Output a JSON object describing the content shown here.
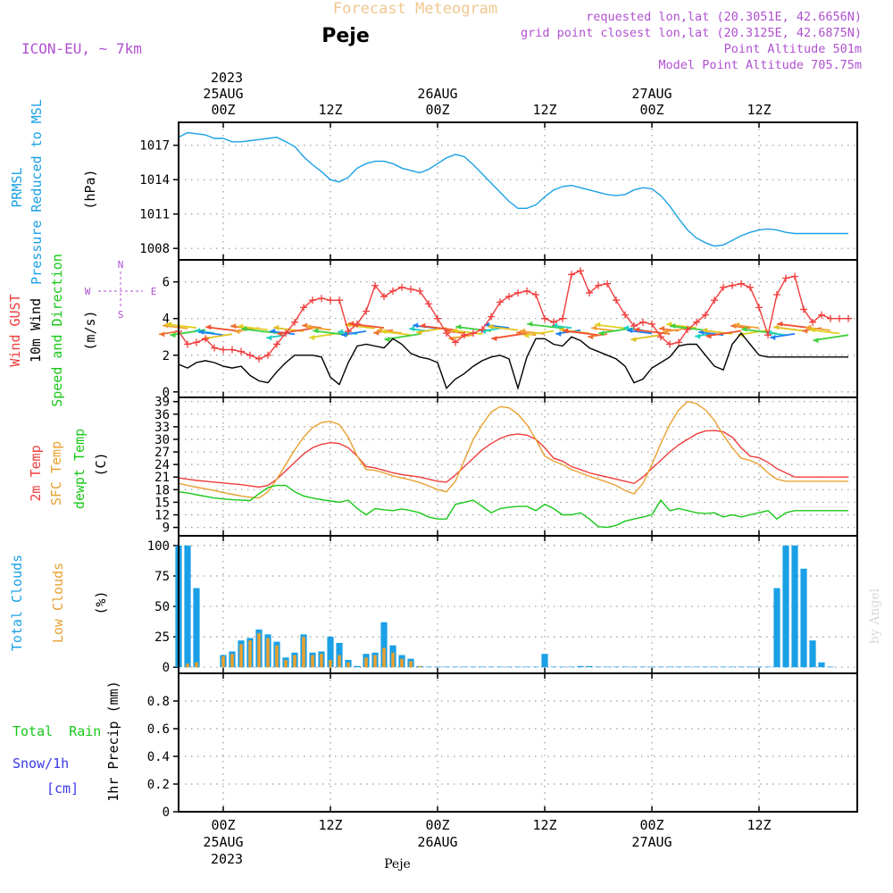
{
  "header": {
    "product": "Forecast Meteogram",
    "location": "Peje",
    "model": "ICON-EU, ~ 7km",
    "requested": "requested lon,lat (20.3051E, 42.6656N)",
    "gridpoint": "grid point closest lon,lat (20.3125E, 42.6875N)",
    "point_alt": "Point Altitude 501m",
    "model_alt": "Model Point Altitude 705.75m",
    "footer_location": "Peje",
    "credit": "by Angel"
  },
  "time_axis": {
    "top_year": "2023",
    "bottom_year": "2023",
    "ticks": [
      {
        "t": 0,
        "hour": "00Z",
        "date": "25AUG"
      },
      {
        "t": 12,
        "hour": "12Z",
        "date": ""
      },
      {
        "t": 24,
        "hour": "00Z",
        "date": "26AUG"
      },
      {
        "t": 36,
        "hour": "12Z",
        "date": ""
      },
      {
        "t": 48,
        "hour": "00Z",
        "date": "27AUG"
      },
      {
        "t": 60,
        "hour": "12Z",
        "date": ""
      }
    ],
    "range_hours": [
      -5,
      71
    ]
  },
  "colors": {
    "pressure": "#1aa0e6",
    "gust": "#f03c3c",
    "wind": "#000000",
    "temp2m": "#f03c3c",
    "sfctemp": "#e8a030",
    "dewpt": "#18c818",
    "totalclouds": "#1aa0e6",
    "lowclouds": "#e8a030",
    "rain": "#18c818",
    "snow": "#3838e8",
    "purple": "#b050d0",
    "title_orange": "#f0c890"
  },
  "panels": {
    "pressure": {
      "label1": "PRMSL",
      "label2": "Pressure Reduced to MSL",
      "units": "(hPa)"
    },
    "wind": {
      "label_gust": "Wind GUST",
      "label_wind": "10m Wind",
      "label_dir": "Speed and Direction",
      "units": "(m/s)",
      "compass_n": "N",
      "compass_s": "S",
      "compass_e": "E",
      "compass_w": "W"
    },
    "temp": {
      "label_2m": "2m Temp",
      "label_sfc": "SFC Temp",
      "label_dewpt": "dewpt Temp",
      "units": "(C)"
    },
    "clouds": {
      "label_total": "Total Clouds",
      "label_low": "Low Clouds",
      "units": "(%)"
    },
    "precip": {
      "label_rain": "Total  Rain",
      "label_snow": "Snow/1h",
      "label_cm": "[cm]",
      "units": "1hr Precip (mm)"
    }
  },
  "chart_data": [
    {
      "type": "line",
      "id": "pressure",
      "ylim": [
        1007,
        1019
      ],
      "yticks": [
        1008,
        1011,
        1014,
        1017
      ],
      "x": [
        -5,
        -4,
        -3,
        -2,
        -1,
        0,
        1,
        2,
        3,
        4,
        5,
        6,
        7,
        8,
        9,
        10,
        11,
        12,
        13,
        14,
        15,
        16,
        17,
        18,
        19,
        20,
        21,
        22,
        23,
        24,
        25,
        26,
        27,
        28,
        29,
        30,
        31,
        32,
        33,
        34,
        35,
        36,
        37,
        38,
        39,
        40,
        41,
        42,
        43,
        44,
        45,
        46,
        47,
        48,
        49,
        50,
        51,
        52,
        53,
        54,
        55,
        56,
        57,
        58,
        59,
        60,
        61,
        62,
        63,
        64,
        65,
        66,
        67,
        68,
        69,
        70
      ],
      "series": [
        {
          "name": "PRMSL",
          "values": [
            1017.7,
            1018.1,
            1018.0,
            1017.9,
            1017.6,
            1017.6,
            1017.3,
            1017.3,
            1017.4,
            1017.5,
            1017.6,
            1017.7,
            1017.3,
            1016.9,
            1016.0,
            1015.3,
            1014.7,
            1014.0,
            1013.8,
            1014.2,
            1015.0,
            1015.4,
            1015.6,
            1015.6,
            1015.4,
            1015.0,
            1014.8,
            1014.6,
            1014.9,
            1015.4,
            1015.9,
            1016.2,
            1016.0,
            1015.3,
            1014.5,
            1013.7,
            1012.9,
            1012.1,
            1011.5,
            1011.5,
            1011.8,
            1012.5,
            1013.1,
            1013.4,
            1013.5,
            1013.3,
            1013.1,
            1012.9,
            1012.7,
            1012.6,
            1012.7,
            1013.1,
            1013.3,
            1013.2,
            1012.6,
            1011.7,
            1010.6,
            1009.6,
            1008.9,
            1008.5,
            1008.2,
            1008.3,
            1008.7,
            1009.1,
            1009.4,
            1009.6,
            1009.7,
            1009.6,
            1009.4,
            1009.3,
            1009.3,
            1009.3,
            1009.3,
            1009.3,
            1009.3,
            1009.3
          ]
        }
      ]
    },
    {
      "type": "line",
      "id": "wind",
      "ylim": [
        -0.3,
        7.2
      ],
      "yticks": [
        0,
        2,
        4,
        6
      ],
      "x": [
        -5,
        -4,
        -3,
        -2,
        -1,
        0,
        1,
        2,
        3,
        4,
        5,
        6,
        7,
        8,
        9,
        10,
        11,
        12,
        13,
        14,
        15,
        16,
        17,
        18,
        19,
        20,
        21,
        22,
        23,
        24,
        25,
        26,
        27,
        28,
        29,
        30,
        31,
        32,
        33,
        34,
        35,
        36,
        37,
        38,
        39,
        40,
        41,
        42,
        43,
        44,
        45,
        46,
        47,
        48,
        49,
        50,
        51,
        52,
        53,
        54,
        55,
        56,
        57,
        58,
        59,
        60,
        61,
        62,
        63,
        64,
        65,
        66,
        67,
        68,
        69,
        70
      ],
      "series": [
        {
          "name": "Wind GUST",
          "values": [
            3.3,
            2.6,
            2.7,
            2.9,
            2.4,
            2.3,
            2.3,
            2.2,
            2.0,
            1.8,
            2.0,
            2.6,
            3.2,
            3.8,
            4.6,
            5.0,
            5.1,
            5.0,
            5.0,
            3.3,
            3.7,
            4.4,
            5.8,
            5.2,
            5.5,
            5.7,
            5.6,
            5.5,
            4.8,
            4.0,
            3.2,
            2.7,
            3.1,
            3.2,
            3.4,
            4.1,
            4.9,
            5.2,
            5.4,
            5.5,
            5.3,
            4.0,
            3.8,
            4.0,
            6.4,
            6.6,
            5.4,
            5.8,
            5.9,
            5.0,
            4.2,
            3.6,
            3.8,
            3.7,
            3.0,
            2.6,
            2.7,
            3.4,
            3.8,
            4.2,
            5.0,
            5.7,
            5.8,
            5.9,
            5.7,
            4.6,
            3.1,
            5.3,
            6.2,
            6.3,
            4.5,
            3.8,
            4.2,
            4.0,
            4.0,
            4.0
          ]
        },
        {
          "name": "10m Wind",
          "values": [
            1.5,
            1.3,
            1.6,
            1.7,
            1.6,
            1.4,
            1.3,
            1.4,
            0.9,
            0.6,
            0.5,
            1.1,
            1.6,
            2.0,
            2.0,
            2.0,
            1.9,
            0.8,
            0.4,
            1.6,
            2.5,
            2.6,
            2.5,
            2.4,
            2.9,
            2.6,
            2.1,
            1.9,
            1.8,
            1.6,
            0.2,
            0.7,
            1.0,
            1.4,
            1.7,
            1.9,
            2.0,
            1.8,
            0.2,
            1.9,
            2.9,
            2.9,
            2.6,
            2.5,
            3.0,
            2.8,
            2.4,
            2.2,
            2.0,
            1.8,
            1.4,
            0.5,
            0.7,
            1.3,
            1.6,
            1.9,
            2.5,
            2.6,
            2.6,
            2.0,
            1.4,
            1.2,
            2.6,
            3.2,
            2.6,
            2.0,
            1.9,
            1.9,
            1.9,
            1.9,
            1.9,
            1.9,
            1.9,
            1.9,
            1.9,
            1.9
          ]
        }
      ]
    },
    {
      "type": "line",
      "id": "temperature",
      "ylim": [
        7,
        40
      ],
      "yticks": [
        9,
        12,
        15,
        18,
        21,
        24,
        27,
        30,
        33,
        36,
        39
      ],
      "x": [
        -5,
        -4,
        -3,
        -2,
        -1,
        0,
        1,
        2,
        3,
        4,
        5,
        6,
        7,
        8,
        9,
        10,
        11,
        12,
        13,
        14,
        15,
        16,
        17,
        18,
        19,
        20,
        21,
        22,
        23,
        24,
        25,
        26,
        27,
        28,
        29,
        30,
        31,
        32,
        33,
        34,
        35,
        36,
        37,
        38,
        39,
        40,
        41,
        42,
        43,
        44,
        45,
        46,
        47,
        48,
        49,
        50,
        51,
        52,
        53,
        54,
        55,
        56,
        57,
        58,
        59,
        60,
        61,
        62,
        63,
        64,
        65,
        66,
        67,
        68,
        69,
        70
      ],
      "series": [
        {
          "name": "2m Temp",
          "values": [
            20.8,
            20.5,
            20.2,
            20.0,
            19.8,
            19.6,
            19.4,
            19.2,
            18.9,
            18.6,
            19.0,
            20.5,
            22.5,
            24.5,
            26.5,
            28.0,
            28.8,
            29.2,
            29.0,
            28.0,
            26.0,
            23.5,
            23.2,
            22.6,
            22.0,
            21.6,
            21.3,
            21.0,
            20.5,
            20.0,
            19.8,
            21.5,
            23.5,
            25.5,
            27.5,
            29.0,
            30.2,
            31.0,
            31.3,
            31.0,
            30.0,
            28.0,
            25.5,
            24.8,
            23.5,
            22.8,
            22.0,
            21.5,
            21.0,
            20.5,
            20.0,
            19.5,
            21.0,
            23.0,
            25.0,
            27.0,
            28.7,
            30.0,
            31.3,
            32.0,
            32.1,
            31.8,
            30.5,
            28.0,
            26.0,
            25.6,
            24.5,
            23.0,
            22.0,
            21.0,
            21.0,
            21.0,
            21.0,
            21.0,
            21.0,
            21.0
          ]
        },
        {
          "name": "SFC Temp",
          "values": [
            19.5,
            19.0,
            18.6,
            18.2,
            17.8,
            17.3,
            16.9,
            16.5,
            16.2,
            16.0,
            17.5,
            20.5,
            24.0,
            27.5,
            30.5,
            32.8,
            34.0,
            34.3,
            33.5,
            30.5,
            26.0,
            22.8,
            22.6,
            22.0,
            21.3,
            20.8,
            20.3,
            19.7,
            18.9,
            18.0,
            17.5,
            20.0,
            25.0,
            30.0,
            33.5,
            36.5,
            37.8,
            37.5,
            36.0,
            33.5,
            30.0,
            26.0,
            24.8,
            24.0,
            22.8,
            22.0,
            21.2,
            20.5,
            19.8,
            19.0,
            17.8,
            17.0,
            19.5,
            24.0,
            29.0,
            33.5,
            37.0,
            39.0,
            38.5,
            37.0,
            34.5,
            31.0,
            28.0,
            25.5,
            25.0,
            24.0,
            22.0,
            20.5,
            20.0,
            20.0,
            20.0,
            20.0,
            20.0,
            20.0,
            20.0,
            20.0
          ]
        },
        {
          "name": "dewpt Temp",
          "values": [
            17.5,
            17.2,
            16.8,
            16.4,
            16.0,
            15.8,
            15.6,
            15.5,
            15.4,
            17.0,
            18.5,
            19.0,
            19.0,
            17.5,
            16.5,
            16.0,
            15.6,
            15.3,
            15.0,
            15.5,
            13.5,
            12.0,
            13.5,
            13.2,
            13.0,
            13.4,
            13.0,
            12.5,
            11.5,
            11.0,
            11.0,
            14.5,
            15.0,
            15.5,
            14.0,
            12.5,
            13.5,
            13.8,
            14.0,
            14.0,
            13.0,
            14.5,
            13.5,
            12.0,
            12.0,
            12.5,
            11.0,
            9.2,
            9.0,
            9.5,
            10.5,
            11.0,
            11.5,
            12.0,
            15.5,
            13.0,
            13.5,
            13.0,
            12.5,
            12.3,
            12.5,
            11.5,
            12.0,
            11.5,
            12.0,
            12.5,
            13.0,
            11.0,
            12.5,
            13.0,
            13.0,
            13.0,
            13.0,
            13.0,
            13.0,
            13.0
          ]
        }
      ]
    },
    {
      "type": "bar",
      "id": "clouds",
      "ylim": [
        -5,
        108
      ],
      "yticks": [
        0,
        25,
        50,
        75,
        100
      ],
      "x": [
        -5,
        -4,
        -3,
        -2,
        -1,
        0,
        1,
        2,
        3,
        4,
        5,
        6,
        7,
        8,
        9,
        10,
        11,
        12,
        13,
        14,
        15,
        16,
        17,
        18,
        19,
        20,
        21,
        22,
        23,
        24,
        25,
        26,
        27,
        28,
        29,
        30,
        31,
        32,
        33,
        34,
        35,
        36,
        37,
        38,
        39,
        40,
        41,
        42,
        43,
        44,
        45,
        46,
        47,
        48,
        49,
        50,
        51,
        52,
        53,
        54,
        55,
        56,
        57,
        58,
        59,
        60,
        61,
        62,
        63,
        64,
        65,
        66,
        67,
        68,
        69,
        70
      ],
      "series": [
        {
          "name": "Total Clouds",
          "values": [
            100,
            100,
            65,
            0,
            0,
            10,
            13,
            22,
            24,
            31,
            27,
            21,
            8,
            12,
            27,
            12,
            13,
            25,
            20,
            6,
            1,
            11,
            12,
            37,
            18,
            10,
            7,
            1,
            0.5,
            0.5,
            0.5,
            0.5,
            0.5,
            0.5,
            0.5,
            0.5,
            0.5,
            0.5,
            0.5,
            0.5,
            0.5,
            11,
            0.5,
            0.5,
            0.5,
            1,
            1,
            0.5,
            0.5,
            0.5,
            0.5,
            0.5,
            0.5,
            0.5,
            0.5,
            0.5,
            0.5,
            0.5,
            0.5,
            0.5,
            0.5,
            0.5,
            0.5,
            0.5,
            0.5,
            0.5,
            0.5,
            65,
            100,
            100,
            81,
            22,
            4,
            0.5,
            0,
            0
          ]
        },
        {
          "name": "Low Clouds",
          "values": [
            0,
            3,
            4,
            0,
            0,
            9,
            11,
            19,
            22,
            28,
            24,
            18,
            6,
            10,
            25,
            10,
            11,
            6,
            10,
            4,
            0,
            8,
            10,
            16,
            12,
            7,
            5,
            1,
            0,
            0,
            0,
            0,
            0,
            0,
            0,
            0,
            0,
            0,
            0,
            0,
            0,
            0,
            0,
            0,
            0,
            0,
            0,
            0,
            0,
            0,
            0,
            0,
            0,
            0,
            0,
            0,
            0,
            0,
            0,
            0,
            0,
            0,
            0,
            0,
            0,
            0,
            0,
            0,
            0,
            0,
            0,
            0,
            0,
            0,
            0,
            0
          ]
        }
      ]
    },
    {
      "type": "bar",
      "id": "precipitation",
      "ylim": [
        0,
        1.0
      ],
      "yticks": [
        0,
        0.2,
        0.4,
        0.6,
        0.8
      ],
      "ytick_labels": [
        "0",
        "0.2",
        "0.4",
        "0.6",
        "0.8"
      ],
      "x": [],
      "series": [
        {
          "name": "Total Rain",
          "values": []
        },
        {
          "name": "Snow/1h",
          "values": []
        }
      ]
    }
  ]
}
